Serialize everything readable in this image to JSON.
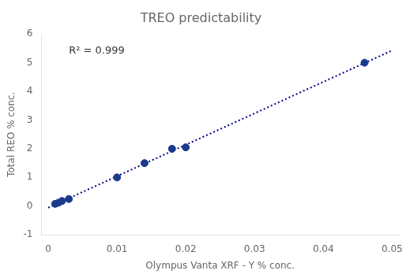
{
  "chart_data": {
    "type": "scatter",
    "title": "TREO predictability",
    "xlabel": "Olympus Vanta XRF - Y % conc.",
    "ylabel": "Total REO % conc.",
    "annotations": [
      {
        "text": "R² = 0.999",
        "x": 0.003,
        "y": 5.6
      }
    ],
    "series": [
      {
        "type": "line",
        "x": [
          0.0,
          0.05
        ],
        "values": [
          -0.0534,
          5.4274
        ],
        "color": "#00008B",
        "line_style": "dotted"
      },
      {
        "type": "scatter",
        "x": [
          0.001,
          0.0015,
          0.002,
          0.003,
          0.01,
          0.014,
          0.018,
          0.02,
          0.046
        ],
        "values": [
          0.08,
          0.12,
          0.18,
          0.25,
          1.0,
          1.5,
          2.0,
          2.05,
          5.0
        ],
        "color": "#1a3a8c",
        "marker": "circle"
      }
    ],
    "xlim": [
      -0.001,
      0.051
    ],
    "ylim": [
      -1,
      6
    ],
    "xticks": [
      0,
      0.01,
      0.02,
      0.03,
      0.04,
      0.05
    ],
    "yticks": [
      -1,
      0,
      1,
      2,
      3,
      4,
      5,
      6
    ],
    "grid": false
  }
}
